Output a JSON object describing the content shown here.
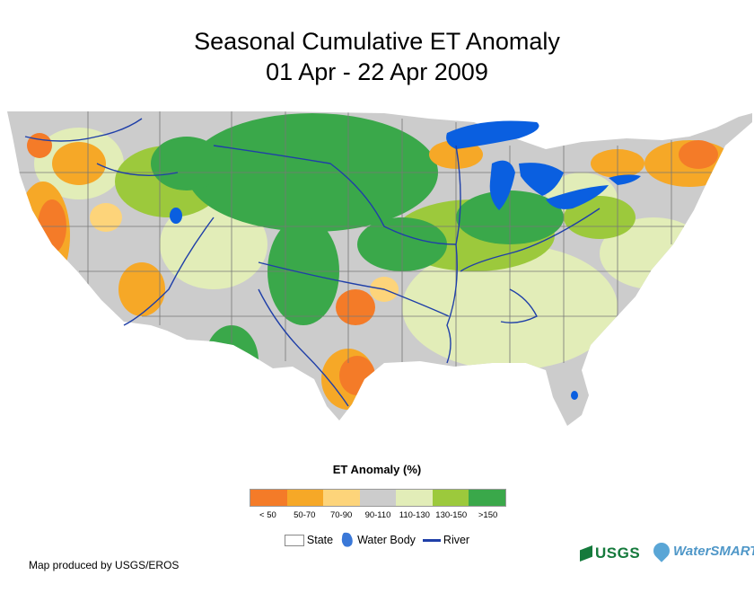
{
  "title": {
    "line1": "Seasonal Cumulative ET Anomaly",
    "line2": "01 Apr - 22 Apr 2009"
  },
  "legend": {
    "title": "ET Anomaly (%)",
    "classes": [
      {
        "label": "< 50",
        "color": "#f47b28"
      },
      {
        "label": "50-70",
        "color": "#f6a827"
      },
      {
        "label": "70-90",
        "color": "#fdd47a"
      },
      {
        "label": "90-110",
        "color": "#cccccc"
      },
      {
        "label": "110-130",
        "color": "#e2edb8"
      },
      {
        "label": "130-150",
        "color": "#9cc93c"
      },
      {
        "label": ">150",
        "color": "#3aa84a"
      }
    ]
  },
  "symbols": {
    "state": "State",
    "water_body": "Water Body",
    "river": "River"
  },
  "colors": {
    "water": "#0a5fe0",
    "river": "#1f3fa8",
    "state_line": "#777777"
  },
  "credit": "Map produced by USGS/EROS",
  "logos": {
    "usgs": "USGS",
    "watersmart": "WaterSMART"
  }
}
